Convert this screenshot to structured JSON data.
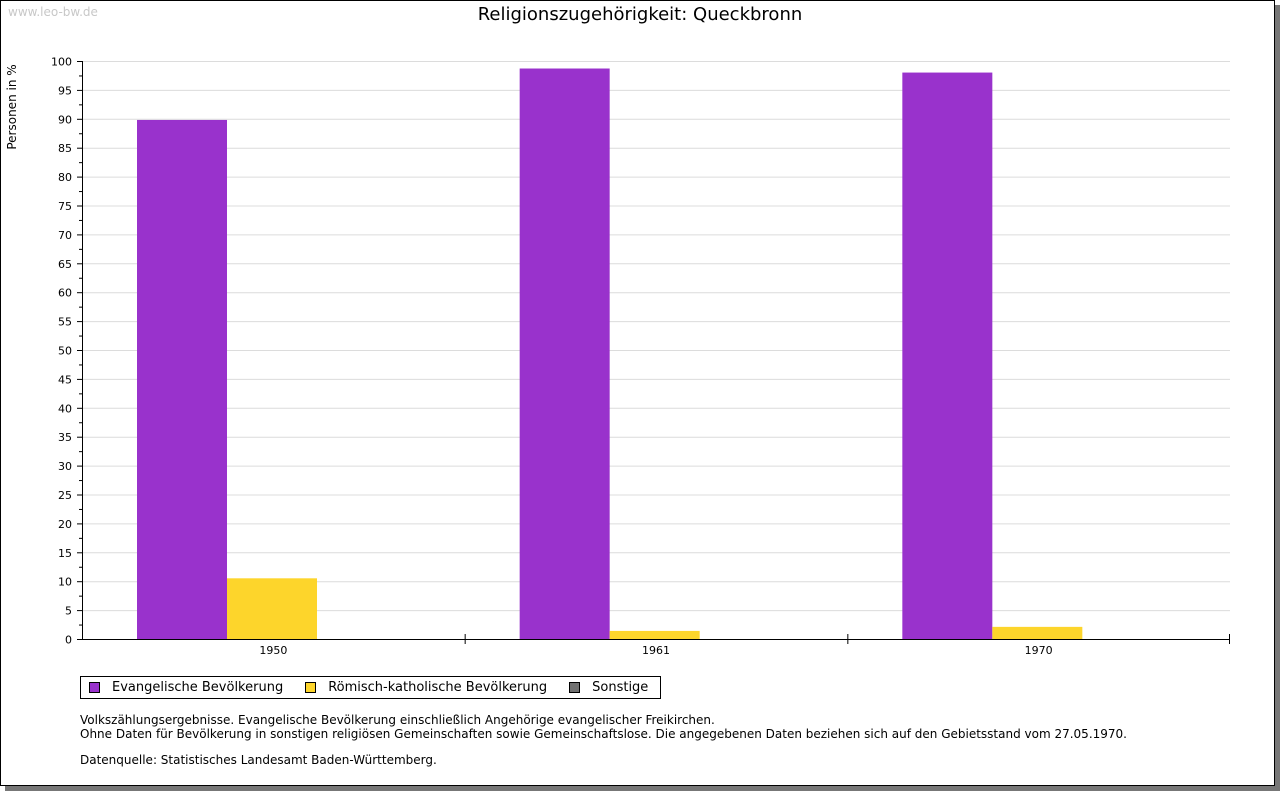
{
  "watermark": "www.leo-bw.de",
  "chart_data": {
    "type": "bar",
    "title": "Religionszugehörigkeit: Queckbronn",
    "ylabel": "Personen in %",
    "xlabel": "",
    "ylim": [
      0,
      100
    ],
    "ytick_step": 5,
    "grid": true,
    "categories": [
      "1950",
      "1961",
      "1970"
    ],
    "series": [
      {
        "name": "Evangelische Bevölkerung",
        "color": "#9932cc",
        "values": [
          89.8,
          98.7,
          98.0
        ]
      },
      {
        "name": "Römisch-katholische Bevölkerung",
        "color": "#fdd52b",
        "values": [
          10.5,
          1.4,
          2.1
        ]
      },
      {
        "name": "Sonstige",
        "color": "#707070",
        "values": [
          0,
          0,
          0
        ]
      }
    ],
    "legend_placement": "bottom-left"
  },
  "notes": [
    "Volkszählungsergebnisse. Evangelische Bevölkerung einschließlich Angehörige evangelischer Freikirchen.",
    "Ohne Daten für Bevölkerung in sonstigen religiösen Gemeinschaften sowie Gemeinschaftslose. Die angegebenen Daten beziehen sich auf den Gebietsstand vom 27.05.1970.",
    "Datenquelle: Statistisches Landesamt Baden-Württemberg."
  ]
}
